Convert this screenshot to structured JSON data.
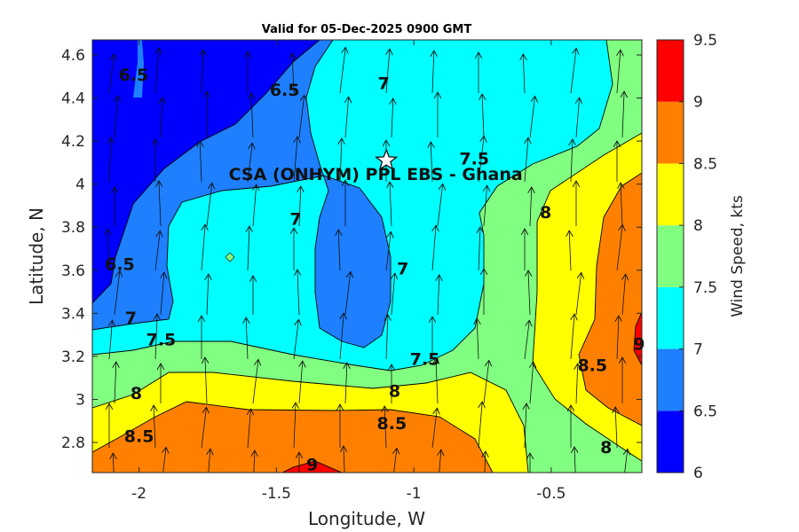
{
  "chart_data": {
    "type": "filled-contour",
    "title": "Valid for 05-Dec-2025 0900 GMT",
    "xlabel": "Longitude, W",
    "ylabel": "Latitude, N",
    "xlim": [
      -2.17,
      -0.17
    ],
    "ylim": [
      2.66,
      4.67
    ],
    "xticks": [
      -2,
      -1.5,
      -1,
      -0.5
    ],
    "xtick_labels": [
      "-2",
      "-1.5",
      "-1",
      "-0.5"
    ],
    "yticks": [
      2.8,
      3.0,
      3.2,
      3.4,
      3.6,
      3.8,
      4.0,
      4.2,
      4.4,
      4.6
    ],
    "ytick_labels": [
      "2.8",
      "3",
      "3.2",
      "3.4",
      "3.6",
      "3.8",
      "4",
      "4.2",
      "4.4",
      "4.6"
    ],
    "colorbar": {
      "label": "Wind Speed, kts",
      "levels": [
        6,
        6.5,
        7,
        7.5,
        8,
        8.5,
        9,
        9.5
      ],
      "tick_labels": [
        "6",
        "6.5",
        "7",
        "7.5",
        "8",
        "8.5",
        "9",
        "9.5"
      ],
      "colors": [
        "#0000ff",
        "#1e7fff",
        "#00ffff",
        "#80ff80",
        "#ffff00",
        "#ff8000",
        "#ff0000"
      ]
    },
    "contour_labels": [
      {
        "text": "6.5",
        "lon": -2.02,
        "lat": 4.51
      },
      {
        "text": "6.5",
        "lon": -1.47,
        "lat": 4.44
      },
      {
        "text": "7",
        "lon": -1.11,
        "lat": 4.47
      },
      {
        "text": "7",
        "lon": -1.43,
        "lat": 3.84
      },
      {
        "text": "7",
        "lon": -1.04,
        "lat": 3.61
      },
      {
        "text": "7.5",
        "lon": -0.78,
        "lat": 4.12
      },
      {
        "text": "8",
        "lon": -0.52,
        "lat": 3.87
      },
      {
        "text": "6.5",
        "lon": -2.07,
        "lat": 3.63
      },
      {
        "text": "7",
        "lon": -2.03,
        "lat": 3.38
      },
      {
        "text": "7.5",
        "lon": -1.92,
        "lat": 3.28
      },
      {
        "text": "7.5",
        "lon": -0.96,
        "lat": 3.19
      },
      {
        "text": "8",
        "lon": -2.01,
        "lat": 3.03
      },
      {
        "text": "8",
        "lon": -1.07,
        "lat": 3.04
      },
      {
        "text": "8.5",
        "lon": -2.0,
        "lat": 2.83
      },
      {
        "text": "8.5",
        "lon": -1.08,
        "lat": 2.89
      },
      {
        "text": "8.5",
        "lon": -0.35,
        "lat": 3.16
      },
      {
        "text": "9",
        "lon": -1.37,
        "lat": 2.7
      },
      {
        "text": "9",
        "lon": -0.18,
        "lat": 3.26
      },
      {
        "text": "8",
        "lon": -0.3,
        "lat": 2.78
      }
    ],
    "site": {
      "name": "CSA (ONHYM) PPL EBS  - Ghana",
      "lon": -1.1,
      "lat": 4.11
    }
  }
}
